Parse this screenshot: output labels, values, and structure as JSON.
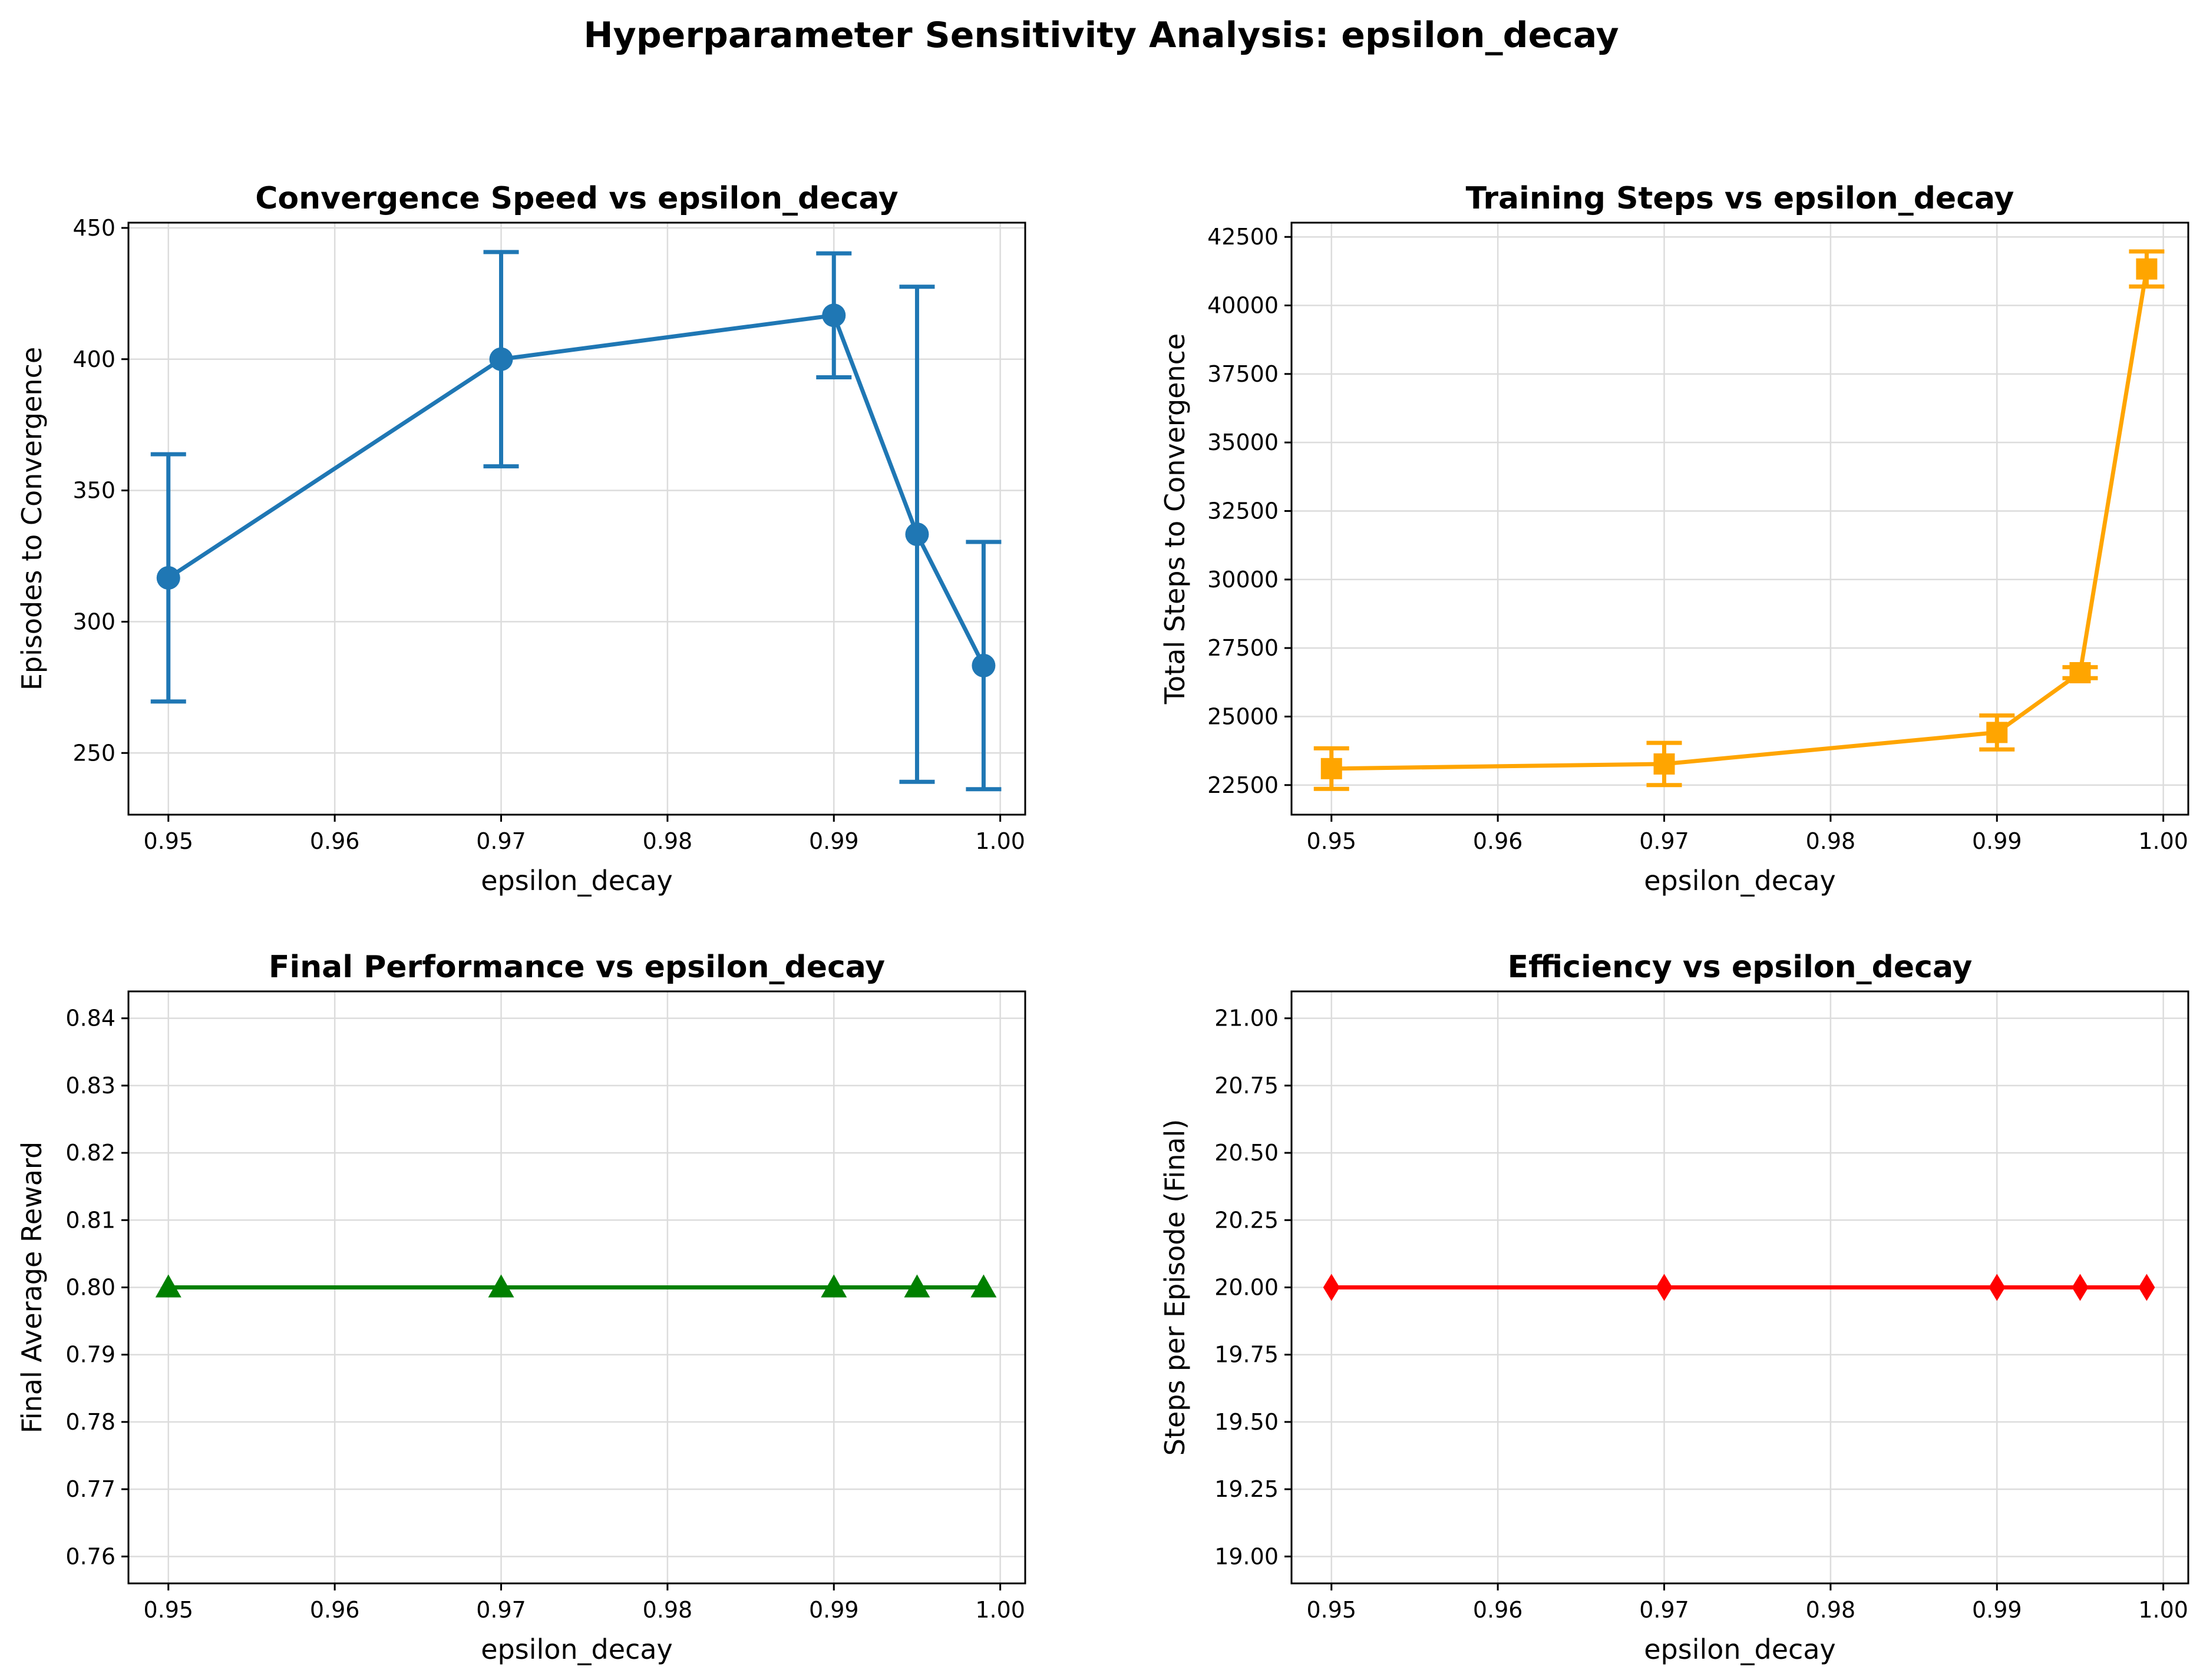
{
  "figure": {
    "suptitle": "Hyperparameter Sensitivity Analysis: epsilon_decay"
  },
  "chart_data": [
    {
      "id": "convergence",
      "type": "line",
      "title": "Convergence Speed vs epsilon_decay",
      "xlabel": "epsilon_decay",
      "ylabel": "Episodes to Convergence",
      "color": "#1f77b4",
      "marker": "circle",
      "x": [
        0.95,
        0.97,
        0.99,
        0.995,
        0.999
      ],
      "y": [
        316.7,
        400.0,
        416.7,
        333.3,
        283.3
      ],
      "yerr": [
        47.1,
        40.8,
        23.6,
        94.3,
        47.1
      ],
      "xlim": [
        0.9476,
        1.0015
      ],
      "ylim": [
        226.5,
        452
      ],
      "xticks": [
        0.95,
        0.96,
        0.97,
        0.98,
        0.99,
        1.0
      ],
      "xtick_labels": [
        "0.95",
        "0.96",
        "0.97",
        "0.98",
        "0.99",
        "1.00"
      ],
      "yticks": [
        250,
        300,
        350,
        400,
        450
      ],
      "ytick_labels": [
        "250",
        "300",
        "350",
        "400",
        "450"
      ],
      "grid": true
    },
    {
      "id": "training-steps",
      "type": "line",
      "title": "Training Steps vs epsilon_decay",
      "xlabel": "epsilon_decay",
      "ylabel": "Total Steps to Convergence",
      "color": "#ffa500",
      "marker": "square",
      "x": [
        0.95,
        0.97,
        0.99,
        0.995,
        0.999
      ],
      "y": [
        23100,
        23270,
        24420,
        26600,
        41330
      ],
      "yerr": [
        740,
        770,
        620,
        200,
        640
      ],
      "xlim": [
        0.9476,
        1.0015
      ],
      "ylim": [
        21420,
        43020
      ],
      "xticks": [
        0.95,
        0.96,
        0.97,
        0.98,
        0.99,
        1.0
      ],
      "xtick_labels": [
        "0.95",
        "0.96",
        "0.97",
        "0.98",
        "0.99",
        "1.00"
      ],
      "yticks": [
        22500,
        25000,
        27500,
        30000,
        32500,
        35000,
        37500,
        40000,
        42500
      ],
      "ytick_labels": [
        "22500",
        "25000",
        "27500",
        "30000",
        "32500",
        "35000",
        "37500",
        "40000",
        "42500"
      ],
      "grid": true
    },
    {
      "id": "final-performance",
      "type": "line",
      "title": "Final Performance vs epsilon_decay",
      "xlabel": "epsilon_decay",
      "ylabel": "Final Average Reward",
      "color": "#008000",
      "marker": "triangle",
      "x": [
        0.95,
        0.97,
        0.99,
        0.995,
        0.999
      ],
      "y": [
        0.8,
        0.8,
        0.8,
        0.8,
        0.8
      ],
      "xlim": [
        0.9476,
        1.0015
      ],
      "ylim": [
        0.756,
        0.844
      ],
      "xticks": [
        0.95,
        0.96,
        0.97,
        0.98,
        0.99,
        1.0
      ],
      "xtick_labels": [
        "0.95",
        "0.96",
        "0.97",
        "0.98",
        "0.99",
        "1.00"
      ],
      "yticks": [
        0.76,
        0.77,
        0.78,
        0.79,
        0.8,
        0.81,
        0.82,
        0.83,
        0.84
      ],
      "ytick_labels": [
        "0.76",
        "0.77",
        "0.78",
        "0.79",
        "0.80",
        "0.81",
        "0.82",
        "0.83",
        "0.84"
      ],
      "grid": true
    },
    {
      "id": "efficiency",
      "type": "line",
      "title": "Efficiency vs epsilon_decay",
      "xlabel": "epsilon_decay",
      "ylabel": "Steps per Episode (Final)",
      "color": "#ff0000",
      "marker": "diamond",
      "x": [
        0.95,
        0.97,
        0.99,
        0.995,
        0.999
      ],
      "y": [
        20.0,
        20.0,
        20.0,
        20.0,
        20.0
      ],
      "xlim": [
        0.9476,
        1.0015
      ],
      "ylim": [
        18.9,
        21.1
      ],
      "xticks": [
        0.95,
        0.96,
        0.97,
        0.98,
        0.99,
        1.0
      ],
      "xtick_labels": [
        "0.95",
        "0.96",
        "0.97",
        "0.98",
        "0.99",
        "1.00"
      ],
      "yticks": [
        19.0,
        19.25,
        19.5,
        19.75,
        20.0,
        20.25,
        20.5,
        20.75,
        21.0
      ],
      "ytick_labels": [
        "19.00",
        "19.25",
        "19.50",
        "19.75",
        "20.00",
        "20.25",
        "20.50",
        "20.75",
        "21.00"
      ],
      "grid": true
    }
  ]
}
